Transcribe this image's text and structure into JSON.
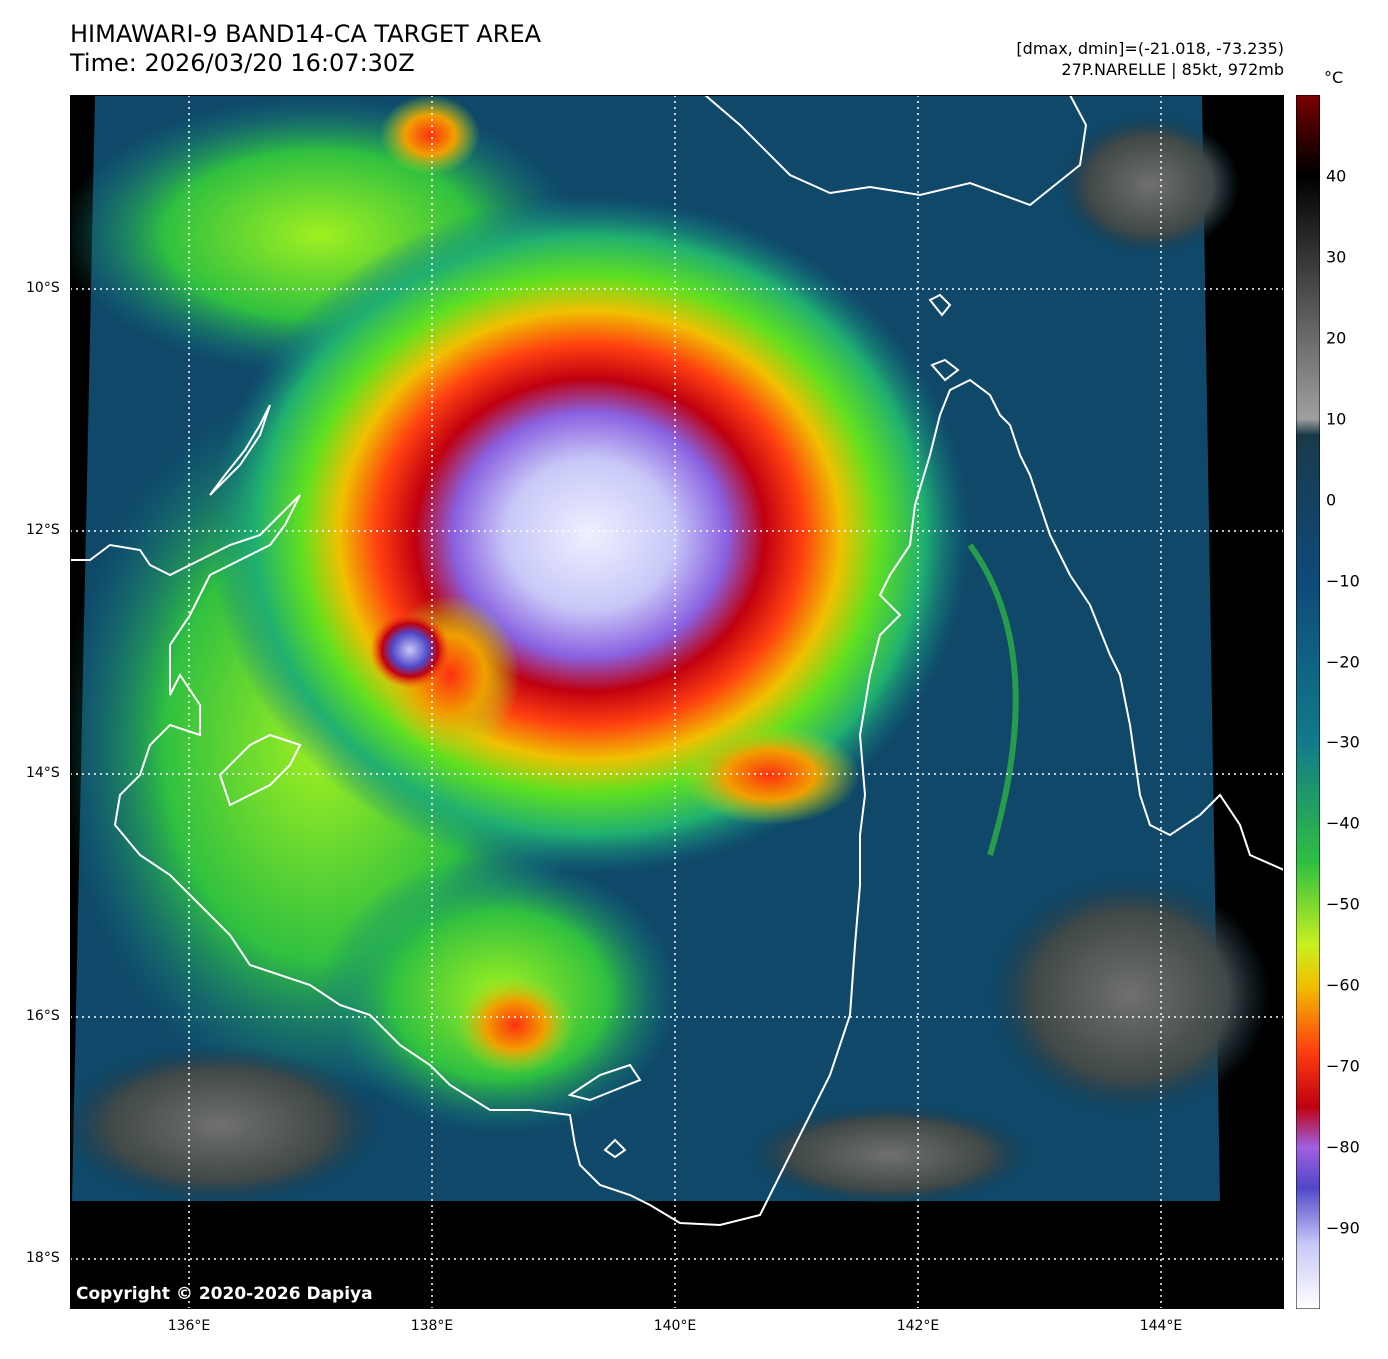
{
  "header": {
    "title_line1": "HIMAWARI-9 BAND14-CA TARGET AREA",
    "title_line2": "Time: 2026/03/20 16:07:30Z",
    "range_text": "[dmax, dmin]=(-21.018, -73.235)",
    "storm_text": "27P.NARELLE | 85kt, 972mb"
  },
  "map": {
    "lat_labels": [
      "10°S",
      "12°S",
      "14°S",
      "16°S",
      "18°S"
    ],
    "lon_labels": [
      "136°E",
      "138°E",
      "140°E",
      "142°E",
      "144°E"
    ],
    "copyright": "Copyright © 2020-2026 Dapiya"
  },
  "colorbar": {
    "unit": "°C",
    "labels": [
      "40",
      "30",
      "20",
      "10",
      "0",
      "−10",
      "−20",
      "−30",
      "−40",
      "−50",
      "−60",
      "−70",
      "−80",
      "−90"
    ],
    "stops": [
      {
        "t": 50,
        "color": "#7a0000"
      },
      {
        "t": 44,
        "color": "#2a0000"
      },
      {
        "t": 40,
        "color": "#000000"
      },
      {
        "t": 14,
        "color": "#8a8a8a"
      },
      {
        "t": 10,
        "color": "#a0a0a0"
      },
      {
        "t": 8,
        "color": "#1a3a4a"
      },
      {
        "t": -10,
        "color": "#0e4a7a"
      },
      {
        "t": -30,
        "color": "#127a8a"
      },
      {
        "t": -45,
        "color": "#30c040"
      },
      {
        "t": -55,
        "color": "#c8f020"
      },
      {
        "t": -60,
        "color": "#f0c000"
      },
      {
        "t": -68,
        "color": "#ff4010"
      },
      {
        "t": -75,
        "color": "#c00010"
      },
      {
        "t": -80,
        "color": "#a060e0"
      },
      {
        "t": -85,
        "color": "#5048c8"
      },
      {
        "t": -92,
        "color": "#c8c8f8"
      },
      {
        "t": -100,
        "color": "#ffffff"
      }
    ],
    "range": [
      50,
      -100
    ]
  }
}
